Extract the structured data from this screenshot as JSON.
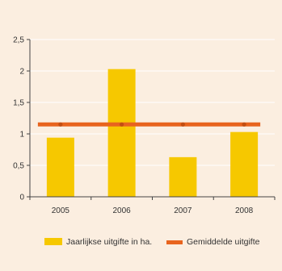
{
  "colors": {
    "background": "#fbeee0",
    "bar": "#f6c800",
    "line": "#e8641e",
    "axis": "#444444",
    "gridline": "#ffffff"
  },
  "chart_data": {
    "type": "bar",
    "title": "",
    "xlabel": "",
    "ylabel": "",
    "categories": [
      "2005",
      "2006",
      "2007",
      "2008"
    ],
    "ylim": [
      0,
      2.5
    ],
    "yticks": [
      0,
      0.5,
      1,
      1.5,
      2,
      2.5
    ],
    "ytick_labels": [
      "0",
      "0,5",
      "1",
      "1,5",
      "2",
      "2,5"
    ],
    "grid": true,
    "legend_position": "bottom",
    "series": [
      {
        "name": "Jaarlijkse uitgifte in ha.",
        "type": "bar",
        "values": [
          0.94,
          2.03,
          0.63,
          1.03
        ]
      },
      {
        "name": "Gemiddelde uitgifte",
        "type": "line",
        "values": [
          1.15,
          1.15,
          1.15,
          1.15
        ]
      }
    ]
  }
}
